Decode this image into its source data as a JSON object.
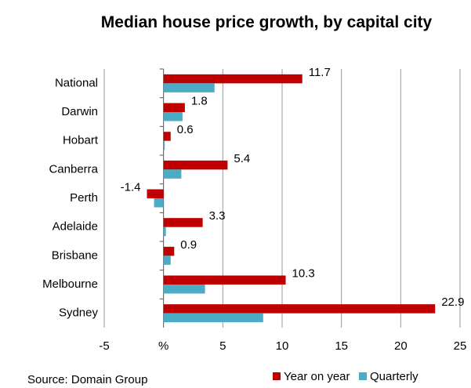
{
  "chart_data": {
    "type": "hbar",
    "title": "Median house price growth, by capital city",
    "source": "Source: Domain Group",
    "categories": [
      "National",
      "Darwin",
      "Hobart",
      "Canberra",
      "Perth",
      "Adelaide",
      "Brisbane",
      "Melbourne",
      "Sydney"
    ],
    "series": [
      {
        "name": "Year on year",
        "color": "#c00000",
        "values": [
          11.7,
          1.8,
          0.6,
          5.4,
          -1.4,
          3.3,
          0.9,
          10.3,
          22.9
        ]
      },
      {
        "name": "Quarterly",
        "color": "#4bacc6",
        "values": [
          4.3,
          1.6,
          0.1,
          1.5,
          -0.8,
          0.2,
          0.6,
          3.5,
          8.4
        ]
      }
    ],
    "xlim": [
      -5,
      25
    ],
    "xticks": [
      -5,
      {
        "value": 0,
        "label": "%"
      },
      5,
      10,
      15,
      20,
      25
    ],
    "grid": true
  }
}
